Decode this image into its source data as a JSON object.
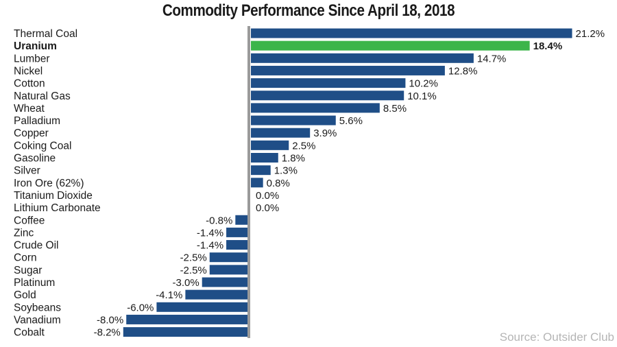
{
  "chart_data": {
    "type": "bar",
    "orientation": "horizontal",
    "title": "Commodity Performance Since April 18, 2018",
    "source": "Source: Outsider Club",
    "colors": {
      "default": "#1f4e87",
      "highlight": "#3cb54a",
      "axis": "#9a9a9a"
    },
    "highlight_category": "Uranium",
    "categories": [
      "Thermal Coal",
      "Uranium",
      "Lumber",
      "Nickel",
      "Cotton",
      "Natural Gas",
      "Wheat",
      "Palladium",
      "Copper",
      "Coking Coal",
      "Gasoline",
      "Silver",
      "Iron Ore (62%)",
      "Titanium Dioxide",
      "Lithium Carbonate",
      "Coffee",
      "Zinc",
      "Crude Oil",
      "Corn",
      "Sugar",
      "Platinum",
      "Gold",
      "Soybeans",
      "Vanadium",
      "Cobalt"
    ],
    "values": [
      21.2,
      18.4,
      14.7,
      12.8,
      10.2,
      10.1,
      8.5,
      5.6,
      3.9,
      2.5,
      1.8,
      1.3,
      0.8,
      0.0,
      0.0,
      -0.8,
      -1.4,
      -1.4,
      -2.5,
      -2.5,
      -3.0,
      -4.1,
      -6.0,
      -8.0,
      -8.2
    ],
    "value_labels": [
      "21.2%",
      "18.4%",
      "14.7%",
      "12.8%",
      "10.2%",
      "10.1%",
      "8.5%",
      "5.6%",
      "3.9%",
      "2.5%",
      "1.8%",
      "1.3%",
      "0.8%",
      "0.0%",
      "0.0%",
      "-0.8%",
      "-1.4%",
      "-1.4%",
      "-2.5%",
      "-2.5%",
      "-3.0%",
      "-4.1%",
      "-6.0%",
      "-8.0%",
      "-8.2%"
    ],
    "unit": "%",
    "xlim": [
      -8.2,
      21.2
    ],
    "grid": false,
    "legend": "none"
  }
}
